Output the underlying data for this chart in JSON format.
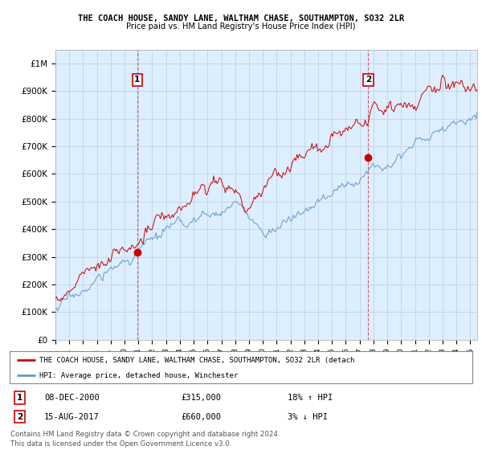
{
  "title_line1": "THE COACH HOUSE, SANDY LANE, WALTHAM CHASE, SOUTHAMPTON, SO32 2LR",
  "title_line2": "Price paid vs. HM Land Registry's House Price Index (HPI)",
  "ylabel_ticks": [
    "£0",
    "£100K",
    "£200K",
    "£300K",
    "£400K",
    "£500K",
    "£600K",
    "£700K",
    "£800K",
    "£900K",
    "£1M"
  ],
  "ytick_values": [
    0,
    100000,
    200000,
    300000,
    400000,
    500000,
    600000,
    700000,
    800000,
    900000,
    1000000
  ],
  "ylim": [
    0,
    1050000
  ],
  "xlim_start": 1995.0,
  "xlim_end": 2025.5,
  "sale1_x": 2000.92,
  "sale1_y": 315000,
  "sale1_label": "1",
  "sale1_date": "08-DEC-2000",
  "sale1_price": "£315,000",
  "sale1_hpi": "18% ↑ HPI",
  "sale2_x": 2017.62,
  "sale2_y": 660000,
  "sale2_label": "2",
  "sale2_date": "15-AUG-2017",
  "sale2_price": "£660,000",
  "sale2_hpi": "3% ↓ HPI",
  "legend_line1": "THE COACH HOUSE, SANDY LANE, WALTHAM CHASE, SOUTHAMPTON, SO32 2LR (detach",
  "legend_line2": "HPI: Average price, detached house, Winchester",
  "footer_line1": "Contains HM Land Registry data © Crown copyright and database right 2024.",
  "footer_line2": "This data is licensed under the Open Government Licence v3.0.",
  "price_color": "#cc0000",
  "hpi_color": "#6699cc",
  "chart_bg_color": "#ddeeff",
  "background_color": "#ffffff",
  "grid_color": "#bbccdd"
}
